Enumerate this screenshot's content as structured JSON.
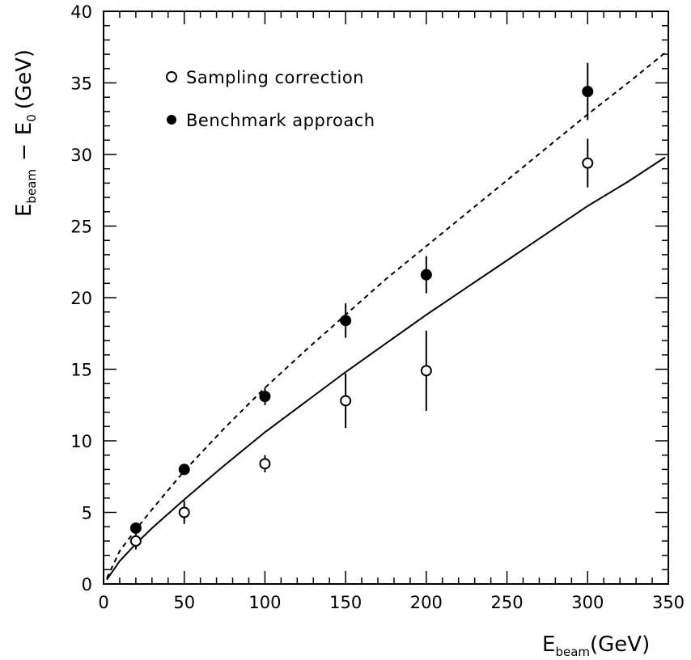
{
  "chart_data": {
    "type": "scatter",
    "xlabel": {
      "main": "E",
      "sub": "beam",
      "unit": "(GeV)"
    },
    "ylabel": {
      "main1": "E",
      "sub1": "beam",
      "op": "−",
      "main2": "E",
      "sub2": "0",
      "unit": "(GeV)"
    },
    "xlim": [
      0,
      350
    ],
    "ylim": [
      0,
      40
    ],
    "x_ticks": [
      0,
      50,
      100,
      150,
      200,
      250,
      300,
      350
    ],
    "y_ticks": [
      0,
      5,
      10,
      15,
      20,
      25,
      30,
      35,
      40
    ],
    "grid": false,
    "legend_position": "top-left",
    "series": [
      {
        "name": "Sampling correction",
        "marker": "open-circle",
        "points": [
          {
            "x": 20,
            "y": 3.0,
            "err": 0.6
          },
          {
            "x": 50,
            "y": 5.0,
            "err": 0.8
          },
          {
            "x": 100,
            "y": 8.4,
            "err": 0.6
          },
          {
            "x": 150,
            "y": 12.8,
            "err": 1.9
          },
          {
            "x": 200,
            "y": 14.9,
            "err": 2.8
          },
          {
            "x": 300,
            "y": 29.4,
            "err": 1.7
          }
        ]
      },
      {
        "name": "Benchmark approach",
        "marker": "filled-circle",
        "points": [
          {
            "x": 20,
            "y": 3.9,
            "err": 0.3
          },
          {
            "x": 50,
            "y": 8.0,
            "err": 0.3
          },
          {
            "x": 100,
            "y": 13.1,
            "err": 0.6
          },
          {
            "x": 150,
            "y": 18.4,
            "err": 1.2
          },
          {
            "x": 200,
            "y": 21.6,
            "err": 1.3
          },
          {
            "x": 300,
            "y": 34.4,
            "err": 2.0
          }
        ]
      }
    ],
    "fit_curves": [
      {
        "style": "solid",
        "x": [
          2,
          10,
          20,
          30,
          50,
          75,
          100,
          125,
          150,
          175,
          200,
          225,
          250,
          275,
          300,
          325,
          348
        ],
        "y": [
          0.3,
          1.6,
          2.8,
          3.9,
          5.9,
          8.3,
          10.6,
          12.7,
          14.8,
          16.8,
          18.8,
          20.7,
          22.6,
          24.5,
          26.4,
          28.1,
          29.8
        ]
      },
      {
        "style": "dashed",
        "x": [
          2,
          10,
          20,
          30,
          50,
          75,
          100,
          125,
          150,
          175,
          200,
          225,
          250,
          275,
          300,
          325,
          348
        ],
        "y": [
          0.4,
          2.3,
          3.8,
          5.2,
          7.9,
          10.9,
          13.7,
          16.3,
          18.8,
          21.3,
          23.6,
          25.9,
          28.2,
          30.5,
          32.8,
          35.0,
          37.1
        ]
      }
    ]
  }
}
